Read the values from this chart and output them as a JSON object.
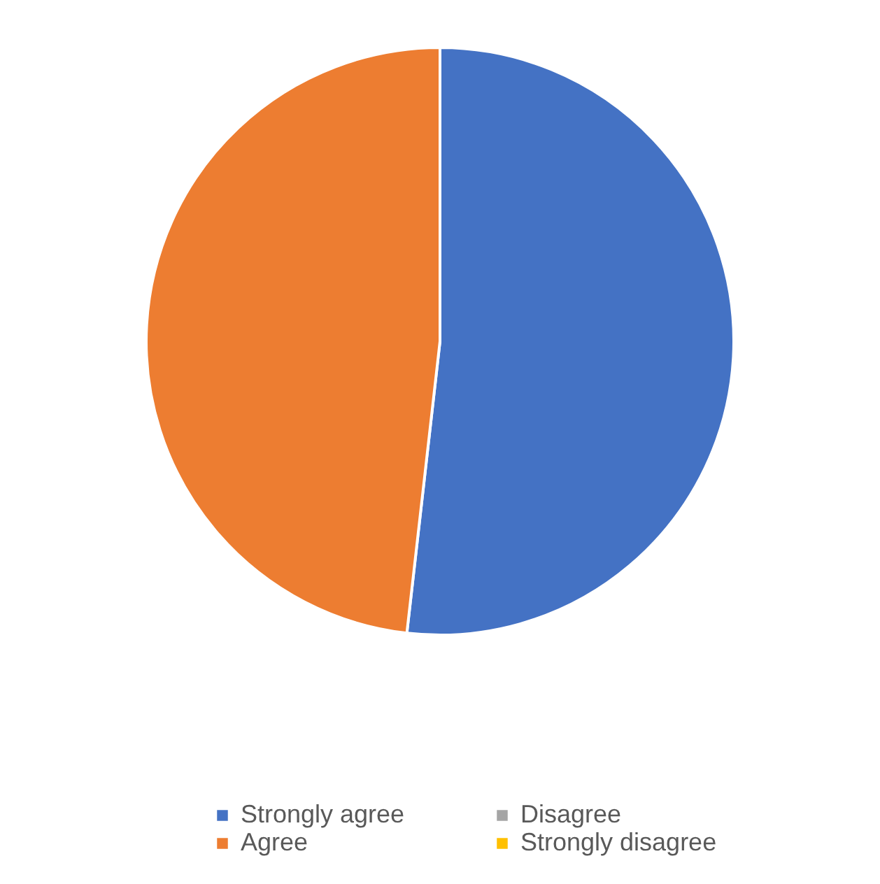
{
  "chart_data": {
    "type": "pie",
    "categories": [
      "Strongly agree",
      "Agree",
      "Disagree",
      "Strongly disagree"
    ],
    "values": [
      51.8,
      48.2,
      0,
      0
    ],
    "colors": [
      "#4472c4",
      "#ed7d31",
      "#a5a5a5",
      "#ffc000"
    ],
    "legend": "bottom"
  }
}
